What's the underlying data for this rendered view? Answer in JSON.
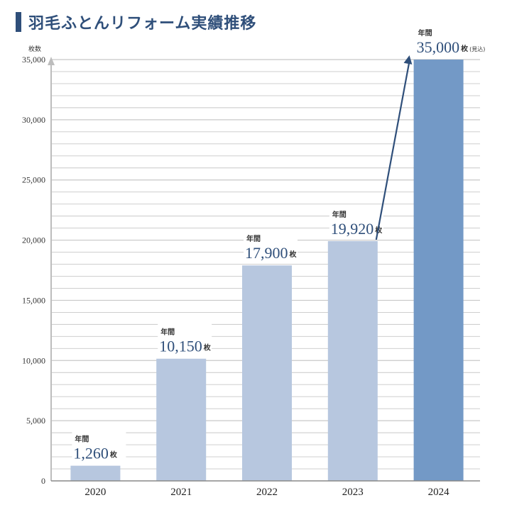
{
  "chart_data": {
    "type": "bar",
    "title": "羽毛ふとんリフォーム実績推移",
    "ylabel": "枚数",
    "ylim": [
      0,
      35000
    ],
    "yticks": [
      "0",
      "5,000",
      "10,000",
      "15,000",
      "20,000",
      "25,000",
      "30,000",
      "35,000"
    ],
    "ytick_values": [
      0,
      5000,
      10000,
      15000,
      20000,
      25000,
      30000,
      35000
    ],
    "categories": [
      "2020",
      "2021",
      "2022",
      "2023",
      "2024"
    ],
    "values": [
      1260,
      10150,
      17900,
      19920,
      35000
    ],
    "data_labels": [
      {
        "prefix": "年間",
        "value": "1,260",
        "unit": "枚",
        "note": ""
      },
      {
        "prefix": "年間",
        "value": "10,150",
        "unit": "枚",
        "note": ""
      },
      {
        "prefix": "年間",
        "value": "17,900",
        "unit": "枚",
        "note": ""
      },
      {
        "prefix": "年間",
        "value": "19,920",
        "unit": "枚",
        "note": ""
      },
      {
        "prefix": "年間",
        "value": "35,000",
        "unit": "枚",
        "note": "(見込)"
      }
    ],
    "colors": {
      "bar": "#b7c7df",
      "highlight_bar": "#7399c6",
      "arrow": "#2f4f7a",
      "grid": "#c8c8c8",
      "title": "#2f4f7a"
    },
    "grid": true,
    "highlight_index": 4
  }
}
